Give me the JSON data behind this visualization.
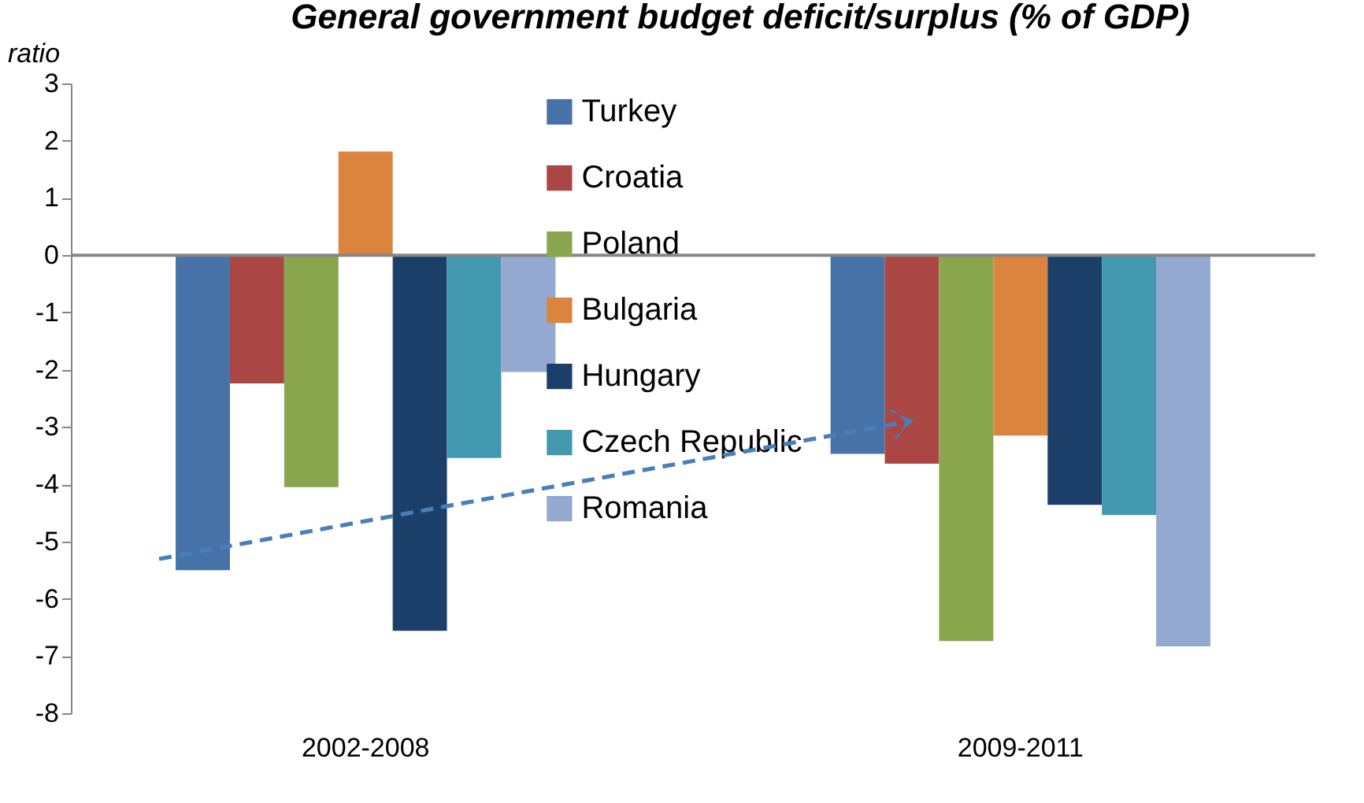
{
  "chart_data": {
    "type": "bar",
    "title": "General government budget deficit/surplus (% of GDP)",
    "ylabel": "ratio",
    "categories": [
      "2002-2008",
      "2009-2011"
    ],
    "series": [
      {
        "name": "Turkey",
        "color": "#4672a8",
        "values": [
          -5.5,
          -3.47
        ]
      },
      {
        "name": "Croatia",
        "color": "#aa4644",
        "values": [
          -2.24,
          -3.64
        ]
      },
      {
        "name": "Poland",
        "color": "#89a54e",
        "values": [
          -4.05,
          -6.74
        ]
      },
      {
        "name": "Bulgaria",
        "color": "#db843d",
        "values": [
          1.81,
          -3.15
        ]
      },
      {
        "name": "Hungary",
        "color": "#1c3f6a",
        "values": [
          -6.56,
          -4.36
        ]
      },
      {
        "name": "Czech Republic",
        "color": "#4298af",
        "values": [
          -3.54,
          -4.54
        ]
      },
      {
        "name": "Romania",
        "color": "#93a9cf",
        "values": [
          -2.04,
          -6.83
        ]
      }
    ],
    "ylim": [
      -8,
      3
    ],
    "yticks": [
      -8,
      -7,
      -6,
      -5,
      -4,
      -3,
      -2,
      -1,
      0,
      1,
      2,
      3
    ],
    "ref_lines": [
      {
        "axis": "y",
        "value": 0,
        "color": "#868686"
      }
    ],
    "grid": false,
    "legend": "top"
  }
}
